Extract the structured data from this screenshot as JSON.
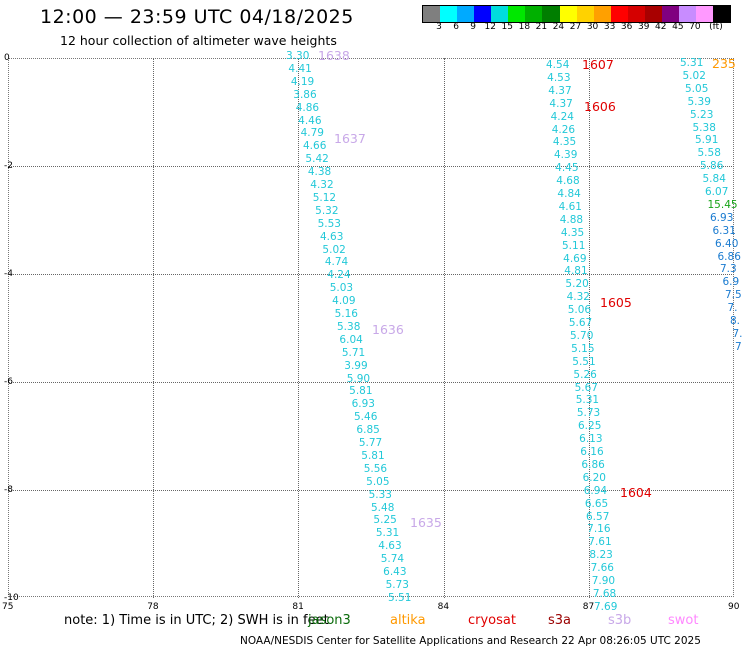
{
  "header": {
    "title": "12:00 — 23:59 UTC 04/18/2025",
    "subtitle": "12 hour collection of altimeter wave heights"
  },
  "legend_scale": {
    "colors": [
      "#7f7f7f",
      "#00ffff",
      "#00aaff",
      "#0000ff",
      "#00dddd",
      "#00e800",
      "#00b000",
      "#007e00",
      "#ffff00",
      "#ffd200",
      "#ffa000",
      "#ff0000",
      "#d50000",
      "#a80000",
      "#800080",
      "#c88cff",
      "#ff99ff",
      "#000000"
    ],
    "labels": [
      "3",
      "6",
      "9",
      "12",
      "15",
      "18",
      "21",
      "24",
      "27",
      "30",
      "33",
      "36",
      "39",
      "42",
      "45",
      "70",
      "(ft)"
    ]
  },
  "map": {
    "x_axis": {
      "ticks": [
        "75",
        "78",
        "81",
        "84",
        "87",
        "90"
      ]
    },
    "y_axis": {
      "ticks": [
        "0",
        "-2",
        "-4",
        "-6",
        "-8",
        "-10"
      ]
    },
    "orbits": [
      {
        "label": "1638",
        "color": "#c8a8e8"
      },
      {
        "label": "1637",
        "color": "#c8a8e8"
      },
      {
        "label": "1636",
        "color": "#c8a8e8"
      },
      {
        "label": "1635",
        "color": "#c8a8e8"
      },
      {
        "label": "1607",
        "color": "#e00000"
      },
      {
        "label": "1606",
        "color": "#e00000"
      },
      {
        "label": "1605",
        "color": "#e00000"
      },
      {
        "label": "1604",
        "color": "#e00000"
      },
      {
        "label": "235",
        "color": "#ff9900"
      }
    ],
    "track1": [
      "3.30",
      "4.41",
      "4.19",
      "3.86",
      "4.86",
      "4.46",
      "4.79",
      "4.66",
      "5.42",
      "4.38",
      "4.32",
      "5.12",
      "5.32",
      "5.53",
      "4.63",
      "5.02",
      "4.74",
      "4.24",
      "5.03",
      "4.09",
      "5.16",
      "5.38",
      "6.04",
      "5.71",
      "3.99",
      "5.90",
      "5.81",
      "6.93",
      "5.46",
      "6.85",
      "5.77",
      "5.81",
      "5.56",
      "5.05",
      "5.33",
      "5.48",
      "5.25",
      "5.31",
      "4.63",
      "5.74",
      "6.43",
      "5.73",
      "5.51"
    ],
    "track2": [
      "4.54",
      "4.53",
      "4.37",
      "4.37",
      "4.24",
      "4.26",
      "4.35",
      "4.39",
      "4.45",
      "4.68",
      "4.84",
      "4.61",
      "4.88",
      "4.35",
      "5.11",
      "4.69",
      "4.81",
      "5.20",
      "4.32",
      "5.06",
      "5.67",
      "5.70",
      "5.15",
      "5.51",
      "5.26",
      "5.67",
      "5.31",
      "5.73",
      "6.25",
      "6.13",
      "6.16",
      "6.86",
      "6.20",
      "6.94",
      "6.65",
      "6.57",
      "7.16",
      "7.61",
      "8.23",
      "7.66",
      "7.90",
      "7.68",
      "7.69"
    ],
    "track3": [
      "5.31",
      "5.02",
      "5.05",
      "5.39",
      "5.23",
      "5.38",
      "5.91",
      "5.58",
      "5.86",
      "5.84",
      "6.07",
      "15.45",
      "6.93",
      "6.31",
      "6.40",
      "6.86",
      "7.3",
      "6.9",
      "7.5",
      "7.",
      "8.",
      "7.",
      "7"
    ]
  },
  "footer": {
    "note": "note:  1) Time is in UTC; 2) SWH is in feet",
    "satellites": [
      {
        "name": "jason3",
        "color": "#0a6b0a"
      },
      {
        "name": "altika",
        "color": "#ff9900"
      },
      {
        "name": "cryosat",
        "color": "#e00000"
      },
      {
        "name": "s3a",
        "color": "#9a0000"
      },
      {
        "name": "s3b",
        "color": "#c8a8e8"
      },
      {
        "name": "swot",
        "color": "#ff88ff"
      }
    ],
    "credit": "NOAA/NESDIS Center for Satellite Applications and Research    22 Apr 08:26:05 UTC 2025"
  }
}
